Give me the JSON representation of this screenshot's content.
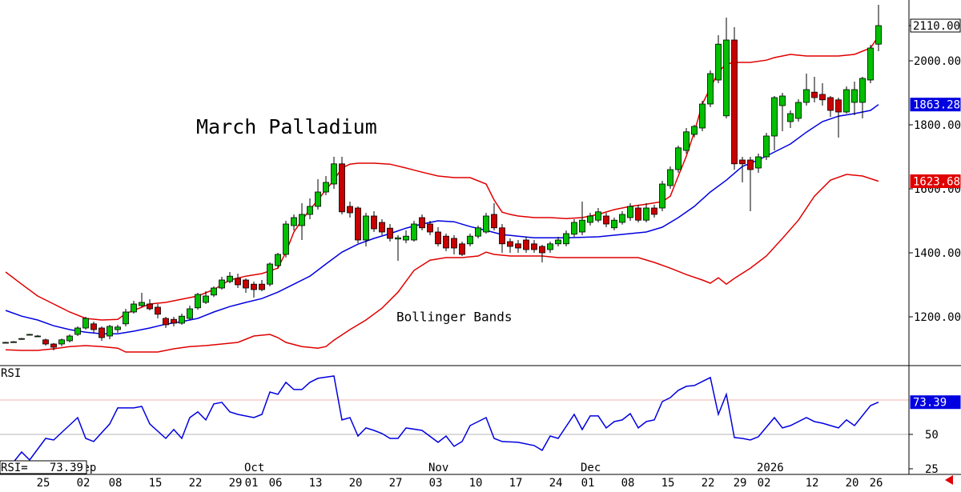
{
  "chart_data": [
    {
      "type": "candlestick",
      "title": "March Palladium",
      "annotation": "Bollinger Bands",
      "categories": [
        null,
        null,
        null,
        null,
        null,
        "25",
        null,
        null,
        null,
        null,
        "02",
        null,
        null,
        null,
        "08",
        null,
        null,
        null,
        null,
        "15",
        null,
        null,
        null,
        null,
        "22",
        null,
        null,
        null,
        null,
        "29",
        null,
        "01",
        null,
        null,
        "06",
        null,
        null,
        null,
        null,
        "13",
        null,
        null,
        null,
        null,
        "20",
        null,
        null,
        null,
        null,
        "27",
        null,
        null,
        null,
        null,
        "03",
        null,
        null,
        null,
        null,
        "10",
        null,
        null,
        null,
        null,
        "17",
        null,
        null,
        null,
        null,
        "24",
        null,
        null,
        null,
        "01",
        null,
        null,
        null,
        null,
        "08",
        null,
        null,
        null,
        null,
        "15",
        null,
        null,
        null,
        null,
        "22",
        null,
        null,
        null,
        "29",
        null,
        null,
        "02",
        null,
        null,
        null,
        null,
        null,
        "12",
        null,
        null,
        null,
        null,
        "20",
        null,
        null,
        "26"
      ],
      "months": [
        {
          "index": 10,
          "label": "Sep"
        },
        {
          "index": 31,
          "label": "Oct"
        },
        {
          "index": 54,
          "label": "Nov"
        },
        {
          "index": 73,
          "label": "Dec"
        },
        {
          "index": 95,
          "label": "2026"
        }
      ],
      "open": [
        1120,
        1122,
        1130,
        1145,
        1140,
        1128,
        1115,
        1115,
        1125,
        1145,
        1165,
        1178,
        1165,
        1140,
        1160,
        1178,
        1215,
        1235,
        1240,
        1230,
        1195,
        1192,
        1180,
        1195,
        1228,
        1245,
        1268,
        1290,
        1310,
        1320,
        1315,
        1302,
        1302,
        1302,
        1360,
        1395,
        1485,
        1485,
        1520,
        1545,
        1590,
        1615,
        1678,
        1545,
        1540,
        1440,
        1515,
        1495,
        1477,
        1443,
        1440,
        1440,
        1510,
        1490,
        1465,
        1452,
        1445,
        1428,
        1428,
        1452,
        1465,
        1520,
        1478,
        1435,
        1428,
        1440,
        1428,
        1420,
        1410,
        1428,
        1428,
        1458,
        1465,
        1495,
        1502,
        1515,
        1478,
        1495,
        1510,
        1540,
        1502,
        1540,
        1540,
        1610,
        1660,
        1720,
        1770,
        1790,
        1865,
        1940,
        1828,
        2065,
        1690,
        1690,
        1665,
        1700,
        1765,
        1860,
        1810,
        1820,
        1870,
        1902,
        1895,
        1885,
        1878,
        1840,
        1870,
        1870,
        1940,
        2052
      ],
      "high": [
        1122,
        1124,
        1134,
        1147,
        1143,
        1132,
        1118,
        1132,
        1145,
        1170,
        1200,
        1185,
        1170,
        1175,
        1175,
        1225,
        1250,
        1275,
        1255,
        1240,
        1200,
        1200,
        1210,
        1235,
        1275,
        1280,
        1295,
        1325,
        1340,
        1335,
        1320,
        1310,
        1315,
        1370,
        1400,
        1500,
        1520,
        1555,
        1570,
        1630,
        1640,
        1700,
        1700,
        1560,
        1545,
        1525,
        1530,
        1505,
        1490,
        1455,
        1470,
        1500,
        1520,
        1500,
        1480,
        1460,
        1455,
        1435,
        1460,
        1485,
        1525,
        1555,
        1490,
        1445,
        1440,
        1450,
        1440,
        1425,
        1435,
        1450,
        1470,
        1505,
        1560,
        1525,
        1540,
        1525,
        1510,
        1530,
        1555,
        1550,
        1555,
        1550,
        1625,
        1670,
        1735,
        1790,
        1800,
        1875,
        1970,
        2080,
        2135,
        2105,
        1700,
        1700,
        1710,
        1775,
        1890,
        1900,
        1845,
        1880,
        1960,
        1950,
        1930,
        1890,
        1885,
        1920,
        1935,
        1950,
        2050,
        2175
      ],
      "low": [
        1118,
        1120,
        1128,
        1143,
        1137,
        1110,
        1095,
        1108,
        1120,
        1140,
        1160,
        1150,
        1125,
        1130,
        1150,
        1170,
        1210,
        1230,
        1220,
        1195,
        1165,
        1170,
        1175,
        1190,
        1222,
        1240,
        1262,
        1285,
        1305,
        1290,
        1275,
        1260,
        1280,
        1295,
        1350,
        1385,
        1470,
        1440,
        1505,
        1535,
        1580,
        1600,
        1520,
        1510,
        1430,
        1420,
        1465,
        1455,
        1435,
        1375,
        1430,
        1435,
        1470,
        1455,
        1420,
        1405,
        1395,
        1390,
        1420,
        1445,
        1460,
        1470,
        1400,
        1400,
        1400,
        1400,
        1400,
        1370,
        1400,
        1420,
        1420,
        1450,
        1455,
        1485,
        1495,
        1480,
        1470,
        1488,
        1500,
        1495,
        1495,
        1510,
        1530,
        1600,
        1650,
        1710,
        1760,
        1780,
        1855,
        1930,
        1820,
        1660,
        1620,
        1530,
        1650,
        1690,
        1720,
        1780,
        1790,
        1810,
        1860,
        1870,
        1860,
        1825,
        1760,
        1835,
        1830,
        1820,
        1930,
        2030
      ],
      "close": [
        1120,
        1122,
        1132,
        1145,
        1140,
        1115,
        1105,
        1128,
        1140,
        1165,
        1195,
        1160,
        1135,
        1170,
        1168,
        1215,
        1240,
        1245,
        1225,
        1208,
        1175,
        1180,
        1202,
        1225,
        1270,
        1265,
        1290,
        1315,
        1327,
        1300,
        1290,
        1285,
        1285,
        1365,
        1395,
        1490,
        1510,
        1520,
        1545,
        1590,
        1620,
        1678,
        1528,
        1525,
        1440,
        1515,
        1475,
        1465,
        1445,
        1447,
        1452,
        1490,
        1478,
        1465,
        1428,
        1415,
        1415,
        1395,
        1452,
        1478,
        1515,
        1478,
        1428,
        1420,
        1415,
        1410,
        1410,
        1400,
        1428,
        1440,
        1460,
        1495,
        1502,
        1515,
        1528,
        1490,
        1502,
        1520,
        1545,
        1502,
        1540,
        1520,
        1615,
        1660,
        1728,
        1778,
        1795,
        1865,
        1960,
        2052,
        2065,
        1678,
        1678,
        1660,
        1700,
        1765,
        1885,
        1890,
        1835,
        1870,
        1910,
        1885,
        1878,
        1845,
        1840,
        1910,
        1910,
        1945,
        2040,
        2110
      ],
      "close_last_label": "2110.00",
      "up_color": "#00c000",
      "down_color": "#c80000",
      "bands": [
        {
          "color": "#e00000",
          "label_last": false,
          "x": [
            0,
            2,
            4,
            6,
            8,
            10,
            12,
            14,
            15,
            16,
            18,
            20,
            22,
            24,
            26,
            28,
            30,
            32,
            34,
            35,
            36,
            37,
            38,
            39,
            40,
            41,
            42,
            43,
            44,
            46,
            48,
            50,
            52,
            54,
            56,
            58,
            60,
            61,
            62,
            63,
            64,
            66,
            68,
            70,
            72,
            74,
            76,
            78,
            80,
            82,
            83,
            84,
            85,
            86,
            87,
            88,
            89,
            90,
            91,
            93,
            95,
            96,
            98,
            100,
            102,
            104,
            106,
            108,
            109
          ],
          "values": [
            1340,
            1302,
            1265,
            1240,
            1215,
            1195,
            1190,
            1192,
            1210,
            1220,
            1240,
            1245,
            1255,
            1265,
            1285,
            1315,
            1327,
            1335,
            1352,
            1402,
            1465,
            1502,
            1535,
            1565,
            1597,
            1627,
            1665,
            1677,
            1680,
            1680,
            1677,
            1665,
            1652,
            1640,
            1635,
            1635,
            1615,
            1565,
            1527,
            1520,
            1515,
            1510,
            1510,
            1507,
            1510,
            1520,
            1535,
            1545,
            1552,
            1560,
            1577,
            1640,
            1702,
            1777,
            1865,
            1915,
            1965,
            1990,
            1995,
            1995,
            2002,
            2010,
            2020,
            2015,
            2015,
            2015,
            2020,
            2040,
            2077
          ]
        },
        {
          "color": "#0000e0",
          "label_last": true,
          "x": [
            0,
            2,
            4,
            6,
            8,
            10,
            12,
            14,
            16,
            18,
            20,
            22,
            24,
            26,
            28,
            30,
            32,
            34,
            36,
            38,
            40,
            42,
            44,
            46,
            48,
            50,
            52,
            54,
            56,
            58,
            60,
            62,
            64,
            66,
            70,
            74,
            76,
            78,
            80,
            82,
            84,
            86,
            88,
            90,
            92,
            94,
            96,
            98,
            100,
            102,
            104,
            106,
            108,
            109
          ],
          "values": [
            1220,
            1202,
            1190,
            1172,
            1160,
            1152,
            1147,
            1147,
            1155,
            1165,
            1177,
            1185,
            1195,
            1215,
            1232,
            1245,
            1257,
            1277,
            1302,
            1327,
            1365,
            1402,
            1427,
            1445,
            1460,
            1477,
            1490,
            1500,
            1497,
            1482,
            1470,
            1457,
            1452,
            1447,
            1447,
            1450,
            1455,
            1460,
            1465,
            1480,
            1510,
            1545,
            1590,
            1627,
            1670,
            1690,
            1715,
            1740,
            1777,
            1810,
            1827,
            1835,
            1845,
            1863.28
          ]
        },
        {
          "color": "#e00000",
          "label_last": true,
          "x": [
            0,
            2,
            4,
            6,
            8,
            10,
            12,
            14,
            15,
            17,
            19,
            21,
            23,
            25,
            27,
            29,
            31,
            33,
            34,
            35,
            37,
            39,
            40,
            41,
            43,
            45,
            47,
            49,
            51,
            53,
            55,
            57,
            59,
            60,
            61,
            63,
            67,
            69,
            75,
            79,
            81,
            83,
            85,
            87,
            88,
            89,
            90,
            91,
            93,
            95,
            97,
            99,
            101,
            103,
            105,
            107,
            109
          ],
          "values": [
            1097,
            1095,
            1095,
            1100,
            1107,
            1110,
            1107,
            1102,
            1090,
            1090,
            1090,
            1100,
            1107,
            1110,
            1115,
            1120,
            1140,
            1145,
            1135,
            1120,
            1107,
            1102,
            1107,
            1127,
            1160,
            1190,
            1227,
            1277,
            1345,
            1377,
            1385,
            1385,
            1390,
            1402,
            1395,
            1390,
            1390,
            1385,
            1385,
            1385,
            1370,
            1352,
            1332,
            1315,
            1305,
            1322,
            1302,
            1320,
            1352,
            1390,
            1445,
            1502,
            1577,
            1627,
            1645,
            1640,
            1623.68
          ]
        }
      ],
      "ylim": [
        1047.5,
        2190
      ],
      "yticks": [
        {
          "value": 1200,
          "label": "1200.00"
        },
        {
          "value": 1400,
          "label": "1400.00"
        },
        {
          "value": 1600,
          "label": "1600.00"
        },
        {
          "value": 1800,
          "label": "1800.00"
        },
        {
          "value": 2000,
          "label": "2000.00"
        }
      ]
    },
    {
      "type": "line",
      "label": "RSI",
      "readout": "RSI=",
      "color": "#0000e0",
      "x": [
        0,
        2,
        3,
        5,
        6,
        9,
        10,
        11,
        13,
        14,
        16,
        17,
        18,
        20,
        21,
        22,
        23,
        24,
        25,
        26,
        27,
        28,
        29,
        31,
        32,
        33,
        34,
        35,
        36,
        37,
        38,
        39,
        41,
        42,
        43,
        44,
        45,
        46,
        47,
        48,
        49,
        50,
        52,
        54,
        55,
        56,
        57,
        58,
        60,
        61,
        62,
        64,
        66,
        67,
        68,
        69,
        71,
        72,
        73,
        74,
        75,
        76,
        77,
        78,
        79,
        80,
        81,
        82,
        83,
        84,
        85,
        86,
        88,
        89,
        90,
        91,
        92,
        93,
        94,
        96,
        97,
        98,
        100,
        101,
        102,
        104,
        105,
        106,
        108,
        109
      ],
      "values": [
        22.7,
        37.2,
        31.4,
        47.1,
        45.9,
        62.2,
        47.1,
        44.8,
        57.6,
        69.2,
        69.2,
        70.3,
        57.6,
        47.1,
        53.5,
        47.1,
        62.2,
        66.3,
        60.5,
        72.1,
        73.3,
        66.3,
        64.5,
        62.2,
        64.5,
        80.8,
        79.1,
        87.8,
        82.6,
        82.6,
        87.8,
        90.7,
        92.4,
        60.5,
        62.2,
        48.8,
        54.7,
        52.9,
        50.6,
        47.1,
        47.1,
        54.7,
        52.9,
        44.2,
        48.8,
        41.3,
        44.8,
        56.4,
        62.2,
        47.1,
        44.8,
        44.2,
        41.9,
        38.4,
        48.8,
        47.1,
        64.5,
        53.5,
        63.4,
        63.4,
        54.7,
        59.3,
        60.5,
        65.1,
        54.7,
        59.3,
        60.5,
        73.8,
        76.7,
        82.0,
        84.9,
        85.5,
        91.3,
        64.5,
        79.1,
        47.7,
        47.1,
        45.9,
        48.3,
        62.2,
        54.7,
        56.4,
        62.2,
        59.3,
        58.1,
        54.7,
        60.5,
        56.4,
        70.9,
        73.39
      ],
      "reference_lines": [
        {
          "value": 75,
          "color": "#f2b0a8"
        },
        {
          "value": 50,
          "color": "#b4b4b4"
        }
      ],
      "ylim": [
        21.5,
        98.8
      ],
      "yticks": [
        25,
        50
      ]
    }
  ]
}
